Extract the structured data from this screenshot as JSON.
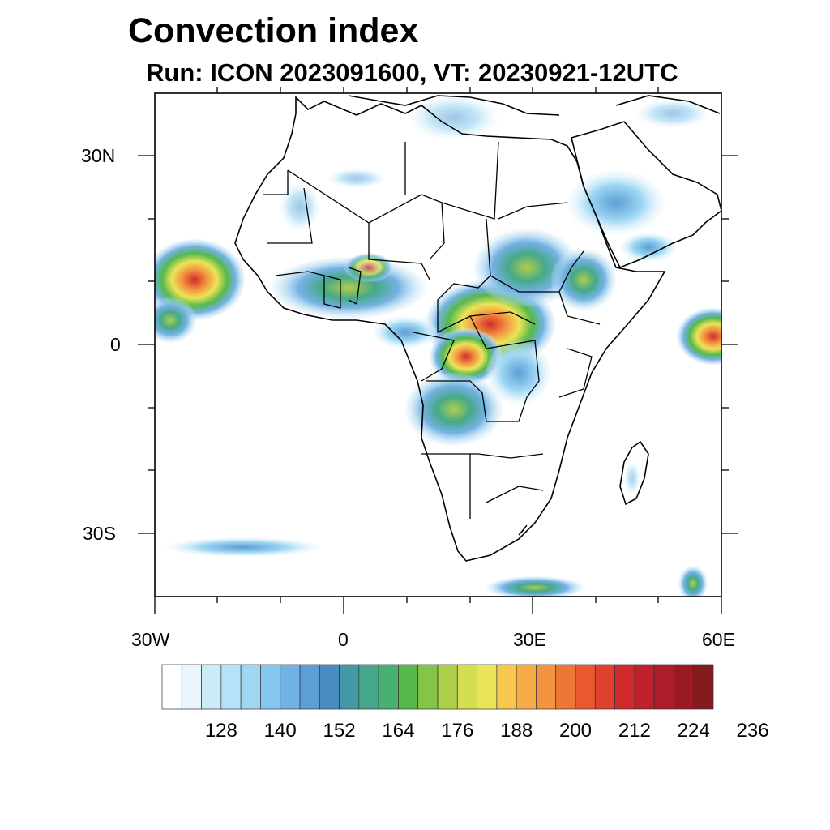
{
  "title": "Convection index",
  "subtitle": "Run: ICON 2023091600,  VT: 20230921-12UTC",
  "axes": {
    "y_labels": [
      "30N",
      "0",
      "30S"
    ],
    "x_labels": [
      "30W",
      "0",
      "30E",
      "60E"
    ]
  },
  "map_extent": {
    "lon": [
      -30,
      60
    ],
    "lat": [
      -40,
      40
    ]
  },
  "colorbar": {
    "labels": [
      "128",
      "140",
      "152",
      "164",
      "176",
      "188",
      "200",
      "212",
      "224",
      "236"
    ],
    "colors": [
      "#ffffff",
      "#e9f6fd",
      "#cceaf8",
      "#b6e2f7",
      "#9ed7f4",
      "#86c7ed",
      "#73b2e4",
      "#5c9fd6",
      "#4a8bc3",
      "#4598a5",
      "#47a889",
      "#4ab070",
      "#55b84d",
      "#86c449",
      "#aecf4b",
      "#d4de50",
      "#ece457",
      "#f7c84e",
      "#f6ad47",
      "#f39440",
      "#ee7736",
      "#e85a2e",
      "#e0402c",
      "#d22a2c",
      "#c01f2c",
      "#ae1b2a",
      "#9a1a24",
      "#851b1f"
    ]
  }
}
